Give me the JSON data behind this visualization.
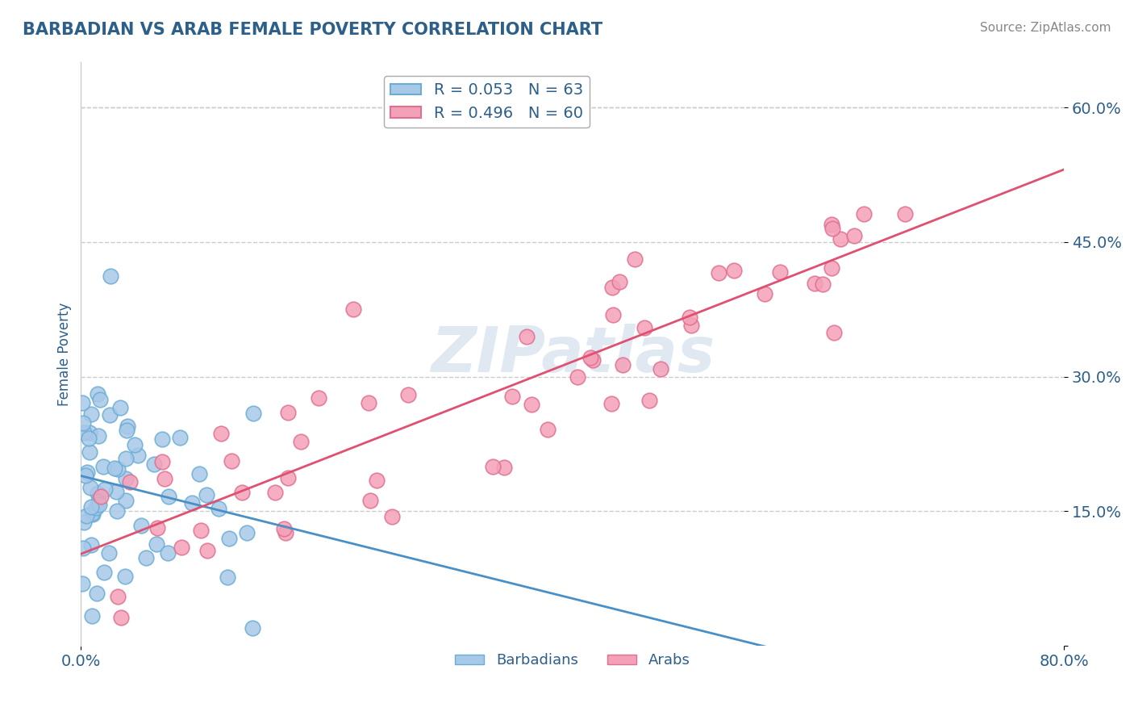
{
  "title": "BARBADIAN VS ARAB FEMALE POVERTY CORRELATION CHART",
  "source_text": "Source: ZipAtlas.com",
  "ylabel": "Female Poverty",
  "watermark": "ZIPatlas",
  "xlim": [
    0.0,
    0.8
  ],
  "ylim": [
    0.0,
    0.65
  ],
  "ytick_vals": [
    0.0,
    0.15,
    0.3,
    0.45,
    0.6
  ],
  "barbadian_color": "#a8c8e8",
  "arab_color": "#f4a0b8",
  "barbadian_edge": "#6aaed6",
  "arab_edge": "#e07090",
  "trend_barbadian_color": "#4a90c4",
  "trend_arab_color": "#e05070",
  "legend_barbadian": "R = 0.053   N = 63",
  "legend_arab": "R = 0.496   N = 60",
  "legend_label_barbadians": "Barbadians",
  "legend_label_arabs": "Arabs",
  "R_barbadian": 0.053,
  "N_barbadian": 63,
  "R_arab": 0.496,
  "N_arab": 60,
  "background_color": "#ffffff",
  "grid_color": "#cccccc",
  "title_color": "#2c5f8a",
  "axis_label_color": "#2c5f8a",
  "tick_color": "#2c5f8a",
  "source_color": "#888888",
  "watermark_color": "#c8d8e8",
  "seed": 42
}
